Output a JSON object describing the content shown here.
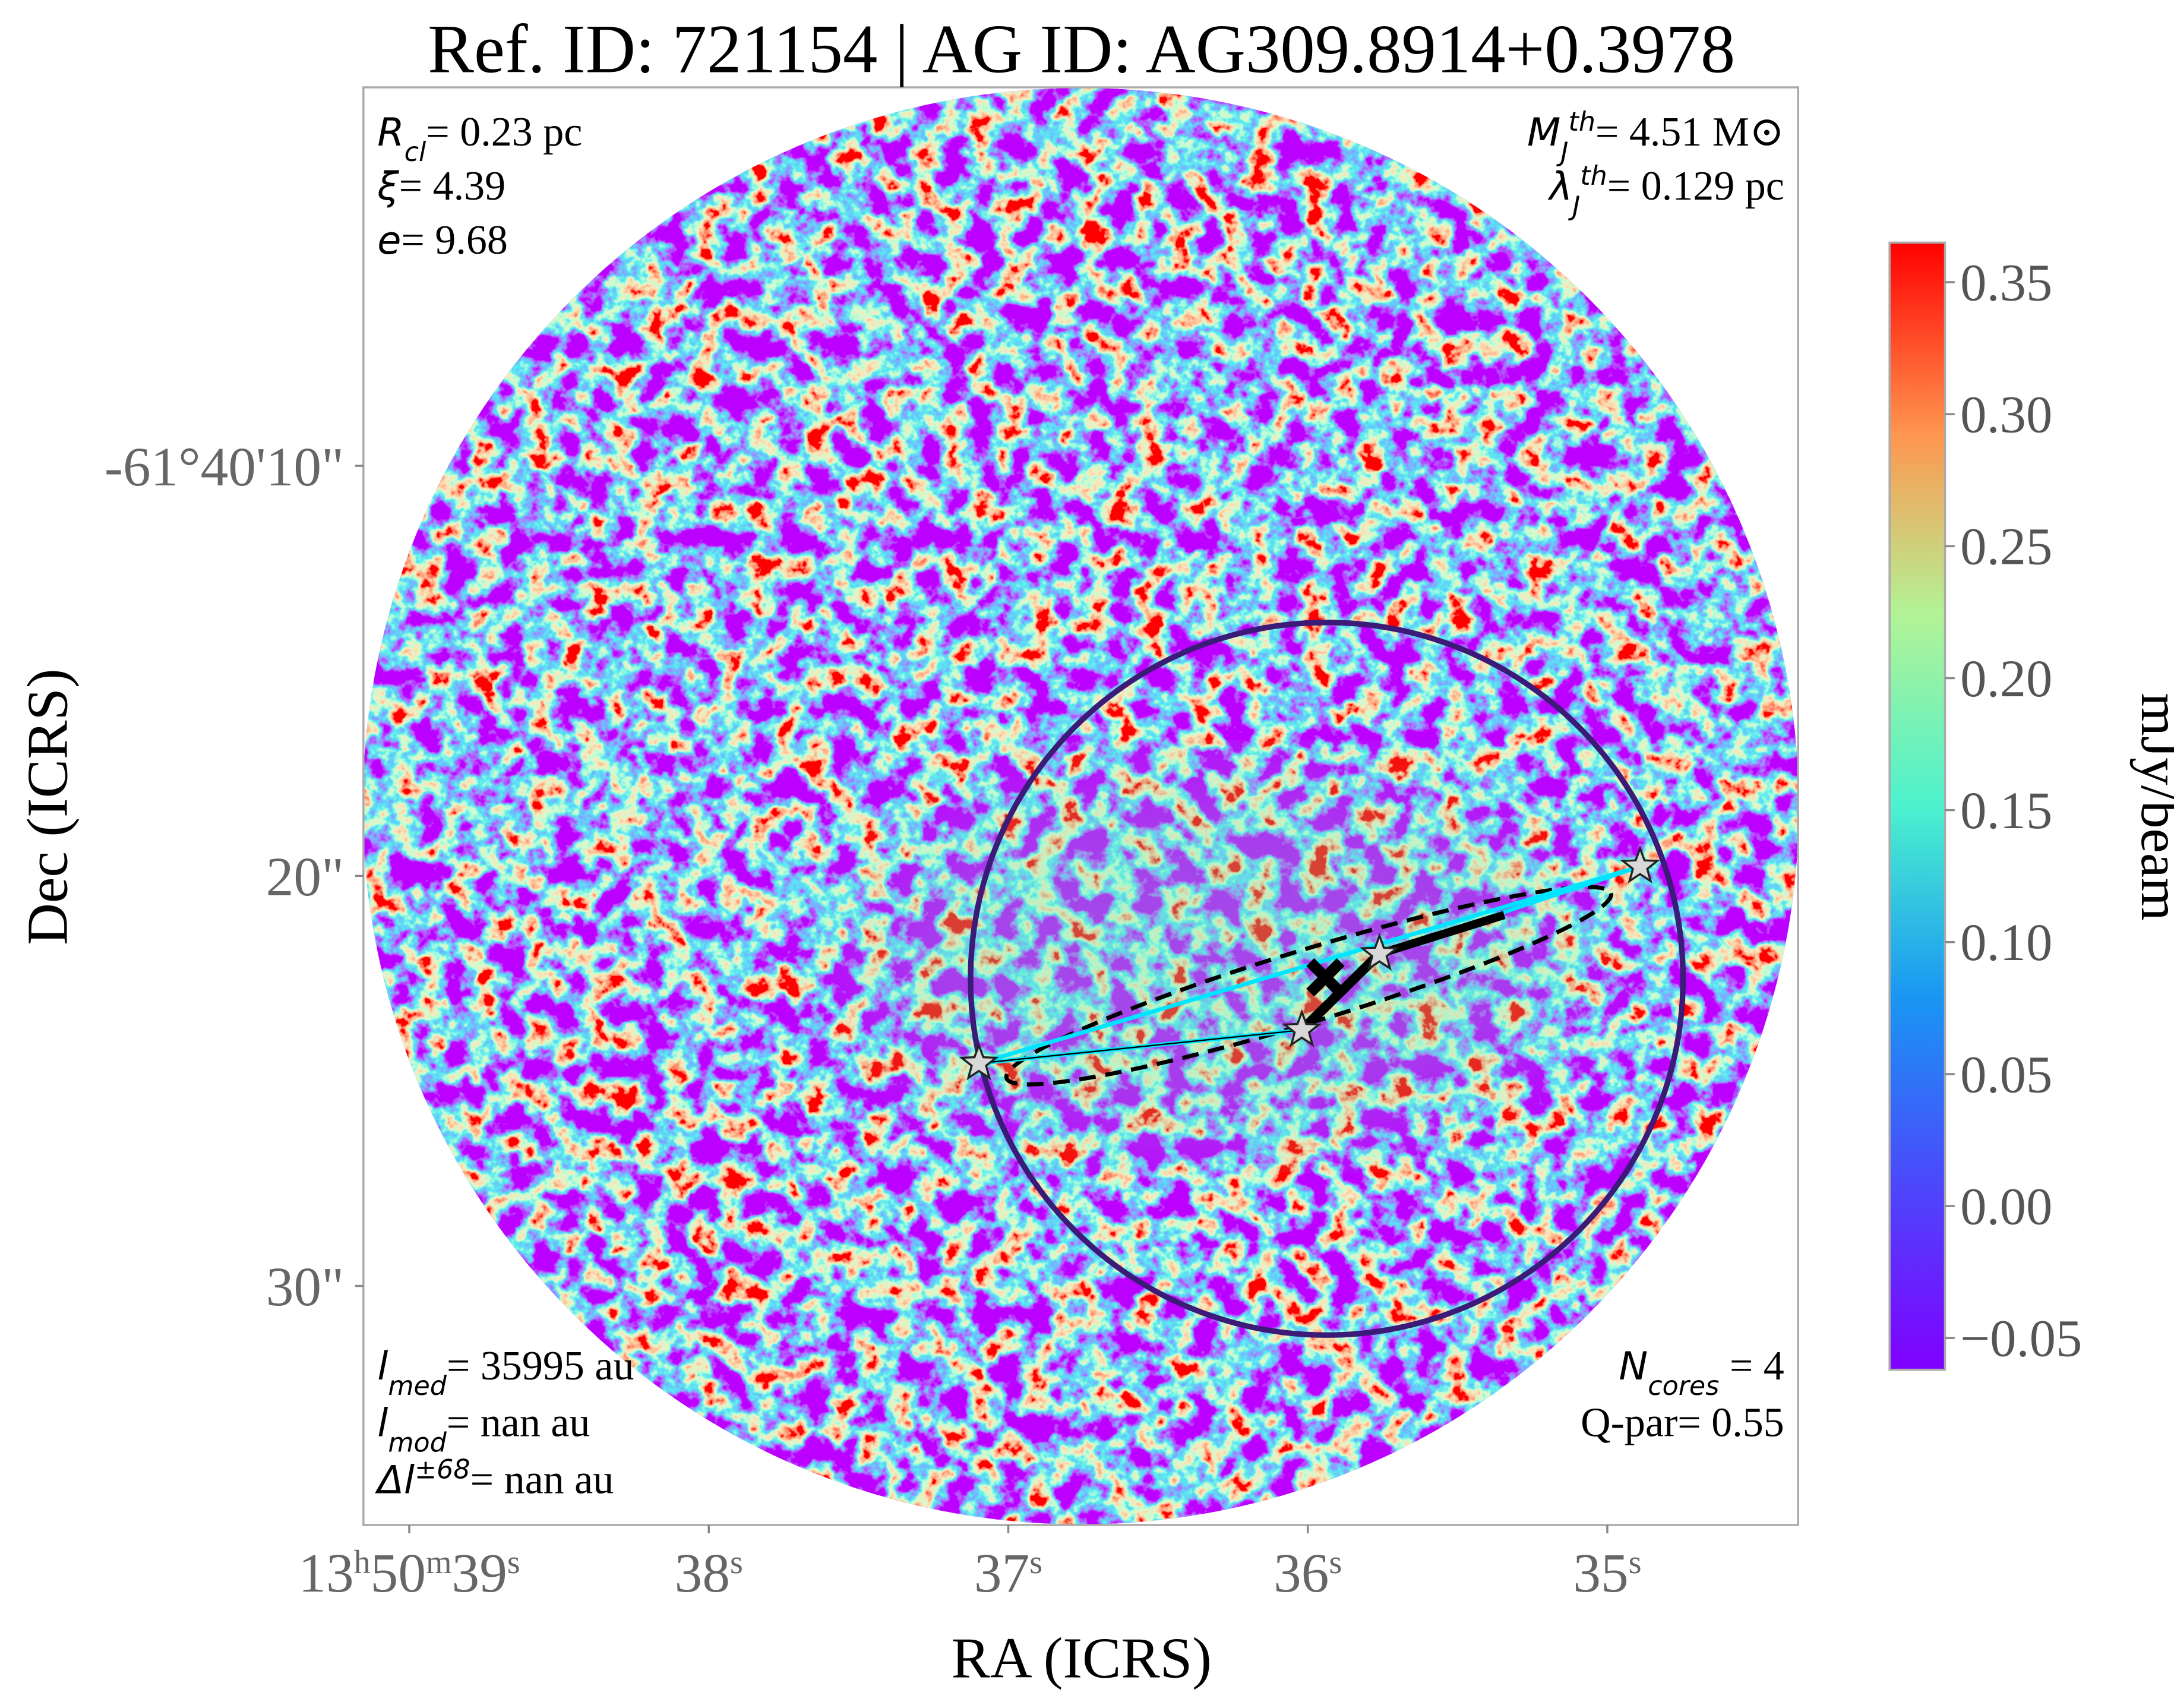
{
  "chart_data": {
    "type": "image",
    "title": "Ref. ID: 721154 | AG ID: AG309.8914+0.3978",
    "xlabel": "RA (ICRS)",
    "ylabel": "Dec (ICRS)",
    "xlim": [
      39.153,
      34.363
    ],
    "xticks": [
      {
        "value": 39,
        "label": [
          "13",
          "h",
          "50",
          "m",
          "39",
          "s"
        ]
      },
      {
        "value": 38,
        "label": [
          "38",
          "s"
        ]
      },
      {
        "value": 37,
        "label": [
          "37",
          "s"
        ]
      },
      {
        "value": 36,
        "label": [
          "36",
          "s"
        ]
      },
      {
        "value": 35,
        "label": [
          "35",
          "s"
        ]
      }
    ],
    "ylim": [
      35.83,
      0.77
    ],
    "yticks": [
      {
        "value": 10,
        "label": "-61°40'10\""
      },
      {
        "value": 20,
        "label": "20\""
      },
      {
        "value": 30,
        "label": "30\""
      }
    ],
    "colorbar": {
      "label": "mJy/beam",
      "clim": [
        -0.062,
        0.365
      ],
      "ticks": [
        {
          "value": -0.05,
          "label": "−0.05"
        },
        {
          "value": 0,
          "label": "0.00"
        },
        0.05,
        {
          "value": 0.1,
          "label": "0.10"
        },
        0.15,
        {
          "value": 0.2,
          "label": "0.20"
        },
        0.25,
        {
          "value": 0.3,
          "label": "0.30"
        },
        0.35
      ]
    },
    "annotations": [
      {
        "position": "top-left",
        "symbol": "R",
        "sub": "cl",
        "text": "= 0.23 pc"
      },
      {
        "position": "top-left",
        "symbol": "ξ",
        "text": "= 4.39"
      },
      {
        "position": "top-left",
        "symbol": "e",
        "text": "= 9.68"
      },
      {
        "position": "top-right",
        "symbol": "M",
        "sub": "J",
        "sup": "th",
        "text": "= 4.51 M⊙"
      },
      {
        "position": "top-right",
        "symbol": "λ",
        "sub": "J",
        "sup": "th",
        "text": "= 0.129 pc"
      },
      {
        "position": "bottom-left",
        "symbol": "l",
        "sub": "med",
        "text": "= 35995 au"
      },
      {
        "position": "bottom-left",
        "symbol": "l",
        "sub": "mod",
        "text": "= nan au"
      },
      {
        "position": "bottom-left",
        "symbol": "Δl",
        "sup": "±68",
        "text": "= nan au"
      },
      {
        "position": "bottom-right",
        "symbol": "N",
        "sub": "cores",
        "text": " = 4"
      },
      {
        "position": "bottom-right",
        "text": "Q-par= 0.55"
      }
    ]
  }
}
